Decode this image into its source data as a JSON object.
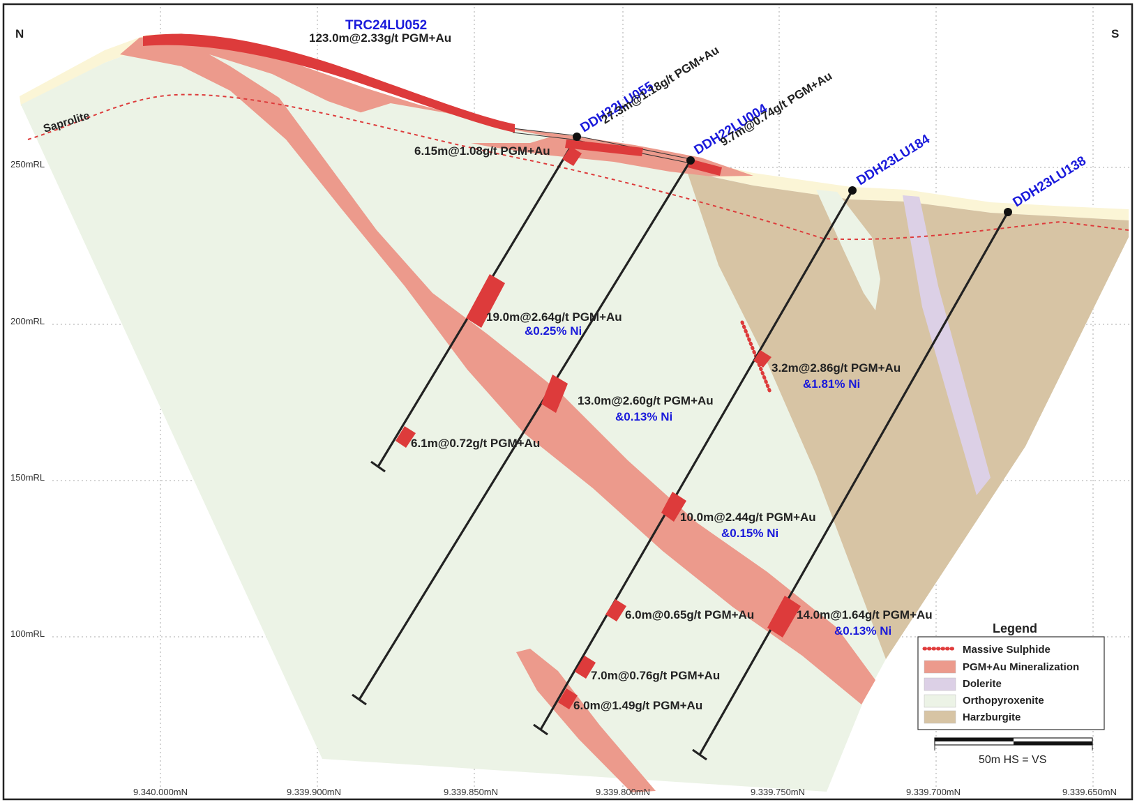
{
  "directions": {
    "north": "N",
    "south": "S"
  },
  "rl_labels": [
    "250mRL",
    "200mRL",
    "150mRL",
    "100mRL"
  ],
  "northing_labels": [
    "9.340.000mN",
    "9.339.900mN",
    "9.339.850mN",
    "9.339.800mN",
    "9.339.750mN",
    "9.339.700mN",
    "9.339.650mN"
  ],
  "saprolite_label": "Saprolite",
  "holes": [
    {
      "id": "trc24lu052",
      "name": "TRC24LU052",
      "interval": "123.0m@2.33g/t PGM+Au"
    },
    {
      "id": "ddh22lu055",
      "name": "DDH22LU055",
      "interval": "27.3m@1.18g/t PGM+Au"
    },
    {
      "id": "ddh22lu004",
      "name": "DDH22LU004",
      "interval": "9.7m@0.74g/t PGM+Au"
    },
    {
      "id": "ddh23lu184",
      "name": "DDH23LU184"
    },
    {
      "id": "ddh23lu138",
      "name": "DDH23LU138"
    }
  ],
  "intercepts": [
    {
      "id": "i1",
      "text": "6.15m@1.08g/t PGM+Au"
    },
    {
      "id": "i2",
      "text": "19.0m@2.64g/t PGM+Au",
      "ni": "&0.25% Ni"
    },
    {
      "id": "i3",
      "text": "13.0m@2.60g/t PGM+Au",
      "ni": "&0.13% Ni"
    },
    {
      "id": "i4",
      "text": "6.1m@0.72g/t PGM+Au"
    },
    {
      "id": "i5",
      "text": "3.2m@2.86g/t PGM+Au",
      "ni": "&1.81% Ni"
    },
    {
      "id": "i6",
      "text": "10.0m@2.44g/t PGM+Au",
      "ni": "&0.15% Ni"
    },
    {
      "id": "i7",
      "text": "6.0m@0.65g/t PGM+Au"
    },
    {
      "id": "i8",
      "text": "14.0m@1.64g/t PGM+Au",
      "ni": "&0.13% Ni"
    },
    {
      "id": "i9",
      "text": "7.0m@0.76g/t PGM+Au"
    },
    {
      "id": "i10",
      "text": "6.0m@1.49g/t PGM+Au"
    }
  ],
  "legend": {
    "title": "Legend",
    "items": [
      {
        "label": "Massive Sulphide",
        "color": "#e03c3c"
      },
      {
        "label": "PGM+Au Mineralization",
        "color": "#ec9a8c"
      },
      {
        "label": "Dolerite",
        "color": "#dcd0e6"
      },
      {
        "label": "Orthopyroxenite",
        "color": "#ecf3e6"
      },
      {
        "label": "Harzburgite",
        "color": "#d7c4a4"
      }
    ]
  },
  "scale": {
    "label": "50m  HS = VS"
  },
  "colors": {
    "orthopyroxenite": "#ecf3e6",
    "harzburgite": "#d7c4a4",
    "dolerite": "#dcd0e6",
    "mineralization": "#ec9a8c",
    "intercept": "#dd3b3b",
    "topsoil": "#fbf5d6",
    "drillhole": "#222222",
    "hole_label": "#1a1adb"
  }
}
